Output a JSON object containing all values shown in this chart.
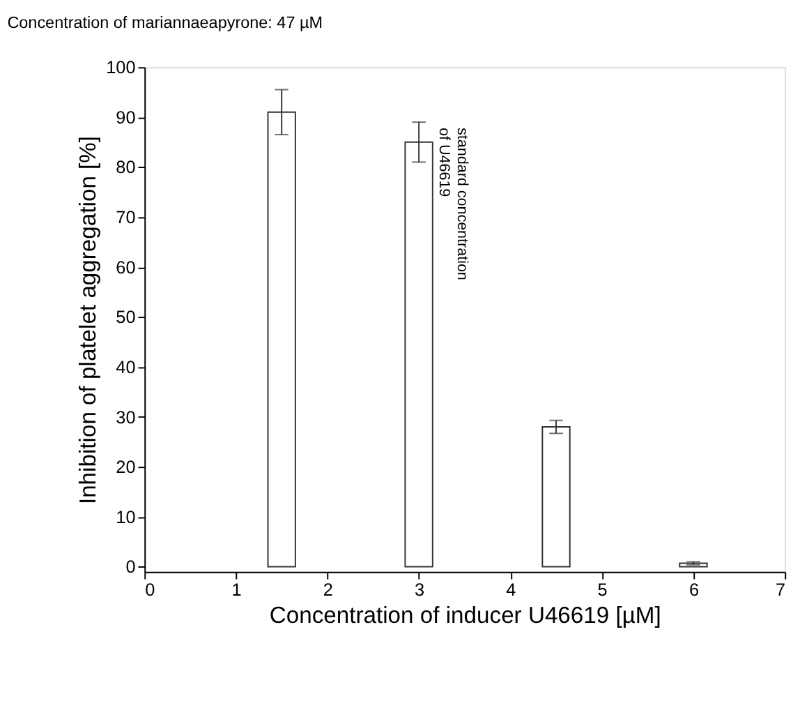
{
  "chart_data": {
    "type": "bar",
    "title": "Concentration of mariannaeapyrone: 47 µM",
    "xlabel": "Concentration of inducer U46619 [µM]",
    "ylabel": "Inhibition of platelet aggregation [%]",
    "x": [
      1.5,
      3,
      4.5,
      6
    ],
    "values": [
      91,
      85,
      28,
      0.7
    ],
    "errors": [
      4.5,
      4,
      1.3,
      0.3
    ],
    "color": "#ffffff",
    "xlim": [
      0,
      7
    ],
    "xticks": [
      0,
      1,
      2,
      3,
      4,
      5,
      6,
      7
    ],
    "ylim": [
      -1,
      100
    ],
    "yticks": [
      0,
      10,
      20,
      30,
      40,
      50,
      60,
      70,
      80,
      90,
      100
    ],
    "annotations": [
      "standard concentration\nof U46619"
    ],
    "grid": false
  }
}
